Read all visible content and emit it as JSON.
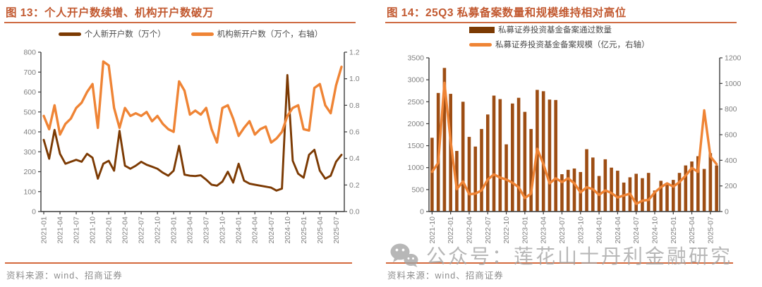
{
  "page": {
    "source_note": "资料来源：wind、招商证券",
    "watermark_text": "公众号：莲花山士丹利金融研究"
  },
  "colors": {
    "title": "#c25930",
    "title_rule": "#cf6b43",
    "separator_rule": "#d4693d",
    "dark_brown_line": "#7c3a03",
    "bar_brown": "#9d4d13",
    "orange_line": "#ef8435",
    "axis_label_gray": "#7f7f7f"
  },
  "chart_data": [
    {
      "id": "fig13",
      "type": "line",
      "title": "图 13：个人开户数续增、机构开户数破万",
      "legend_position": "top",
      "months": 56,
      "x_tick_labels": [
        "2021-01",
        "2021-04",
        "2021-07",
        "2021-10",
        "2022-01",
        "2022-04",
        "2022-07",
        "2022-10",
        "2023-01",
        "2023-04",
        "2023-07",
        "2023-10",
        "2024-01",
        "2024-04",
        "2024-07",
        "2024-10",
        "2025-01",
        "2025-04",
        "2025-07"
      ],
      "left_axis": {
        "min": 0,
        "max": 800,
        "step": 100,
        "ticks": [
          "0",
          "100",
          "200",
          "300",
          "400",
          "500",
          "600",
          "700",
          "800"
        ]
      },
      "right_axis": {
        "min": 0,
        "max": 1.2,
        "step": 0.2,
        "ticks": [
          "0.0",
          "0.2",
          "0.4",
          "0.6",
          "0.8",
          "1.0",
          "1.2"
        ]
      },
      "series": [
        {
          "name": "个人新开户数（万个）",
          "type": "line",
          "axis": "left",
          "color": "#7c3a03",
          "values": [
            360,
            265,
            410,
            290,
            240,
            250,
            260,
            250,
            290,
            270,
            165,
            240,
            255,
            205,
            405,
            230,
            215,
            230,
            250,
            235,
            225,
            215,
            195,
            180,
            205,
            330,
            185,
            180,
            178,
            182,
            160,
            135,
            130,
            150,
            200,
            145,
            240,
            155,
            140,
            135,
            130,
            125,
            120,
            105,
            115,
            685,
            255,
            190,
            170,
            285,
            310,
            205,
            165,
            180,
            250,
            285
          ]
        },
        {
          "name": "机构新开户数（万个，右轴）",
          "type": "line",
          "axis": "right",
          "color": "#ef8435",
          "values": [
            0.72,
            0.62,
            0.8,
            0.58,
            0.66,
            0.7,
            0.78,
            0.82,
            0.9,
            0.96,
            0.63,
            1.13,
            1.1,
            0.78,
            0.63,
            0.78,
            0.72,
            0.74,
            0.72,
            0.75,
            0.68,
            0.72,
            0.66,
            0.62,
            0.6,
            0.98,
            0.91,
            0.73,
            0.76,
            0.73,
            0.78,
            0.62,
            0.52,
            0.78,
            0.8,
            0.7,
            0.57,
            0.63,
            0.68,
            0.58,
            0.62,
            0.64,
            0.52,
            0.55,
            0.6,
            0.72,
            0.78,
            0.8,
            0.62,
            0.61,
            0.93,
            0.96,
            0.8,
            0.74,
            0.95,
            1.09
          ]
        }
      ]
    },
    {
      "id": "fig14",
      "type": "bar+line",
      "title": "图 14：25Q3 私募备案数量和规模维持相对高位",
      "legend_position": "top",
      "months": 47,
      "x_tick_labels": [
        "2021-10",
        "2022-01",
        "2022-04",
        "2022-07",
        "2022-10",
        "2023-01",
        "2023-04",
        "2023-07",
        "2023-10",
        "2024-01",
        "2024-04",
        "2024-07",
        "2024-10",
        "2025-01",
        "2025-04",
        "2025-07"
      ],
      "left_axis": {
        "min": 0,
        "max": 3500,
        "step": 500,
        "ticks": [
          "0",
          "500",
          "1000",
          "1500",
          "2000",
          "2500",
          "3000",
          "3500"
        ]
      },
      "right_axis": {
        "min": 0,
        "max": 1200,
        "step": 200,
        "ticks": [
          "0",
          "200",
          "400",
          "600",
          "800",
          "1000",
          "1200"
        ]
      },
      "series": [
        {
          "name": "私募证券投资基金备案通过数量",
          "type": "bar",
          "axis": "left",
          "color": "#9d4d13",
          "values": [
            1680,
            2700,
            3270,
            2680,
            1380,
            2500,
            1700,
            1480,
            1880,
            2210,
            2640,
            2560,
            1530,
            2460,
            2590,
            2270,
            1880,
            2770,
            2740,
            2550,
            2540,
            850,
            950,
            980,
            900,
            1420,
            1230,
            810,
            1190,
            1000,
            930,
            660,
            780,
            860,
            760,
            880,
            480,
            700,
            650,
            720,
            880,
            1050,
            1140,
            1260,
            970,
            1330,
            1050
          ]
        },
        {
          "name": "私募证券投资基金备案规模（亿元，右轴）",
          "type": "line",
          "axis": "right",
          "color": "#ef8435",
          "values": [
            310,
            380,
            1005,
            550,
            175,
            235,
            135,
            140,
            165,
            250,
            290,
            265,
            250,
            225,
            190,
            105,
            140,
            490,
            370,
            220,
            260,
            230,
            260,
            220,
            150,
            190,
            175,
            130,
            165,
            145,
            110,
            125,
            140,
            60,
            85,
            90,
            150,
            190,
            220,
            195,
            230,
            280,
            340,
            310,
            790,
            430,
            370
          ]
        }
      ]
    }
  ]
}
